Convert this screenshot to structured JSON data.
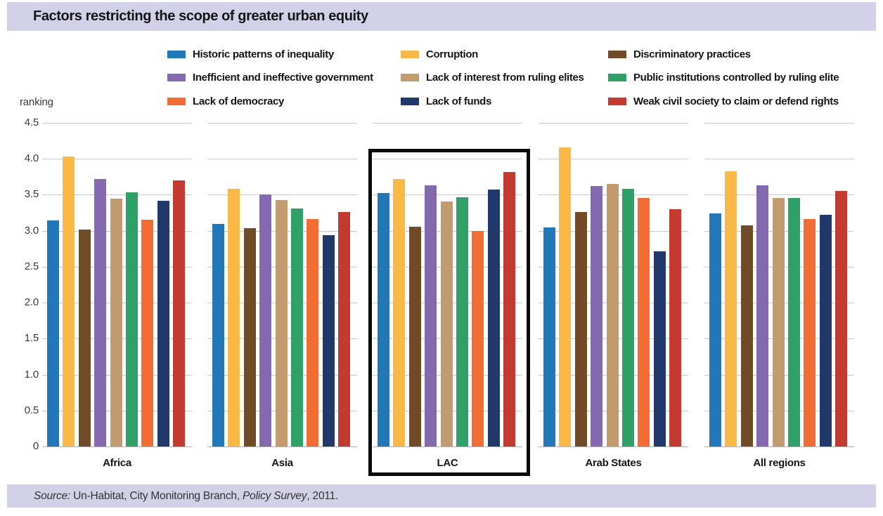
{
  "header": {
    "title": "Factors restricting the scope of greater urban equity"
  },
  "source": {
    "prefix_italic": "Source:",
    "middle": " Un-Habitat, City Monitoring Branch, ",
    "survey_italic": "Policy Survey",
    "suffix": ", 2011."
  },
  "chart_data": {
    "type": "bar",
    "title": "Factors restricting the scope of greater urban equity",
    "xlabel": "",
    "ylabel": "ranking",
    "ylim": [
      0,
      4.5
    ],
    "ytick_labels": [
      "4.5",
      "4.0",
      "3.5",
      "3.0",
      "2.5",
      "2.0",
      "1.5",
      "1.0",
      "0.5",
      "0"
    ],
    "grid": true,
    "legend_position": "top",
    "legend_columns": 3,
    "categories": [
      "Africa",
      "Asia",
      "LAC",
      "Arab States",
      "All regions"
    ],
    "highlighted_category": "LAC",
    "series": [
      {
        "name": "Historic patterns of inequality",
        "color": "#2277b8",
        "values": [
          3.14,
          3.09,
          3.52,
          3.05,
          3.24
        ]
      },
      {
        "name": "Corruption",
        "color": "#fab846",
        "values": [
          4.03,
          3.58,
          3.72,
          4.16,
          3.83
        ]
      },
      {
        "name": "Discriminatory practices",
        "color": "#6f4b28",
        "values": [
          3.02,
          3.04,
          3.06,
          3.26,
          3.07
        ]
      },
      {
        "name": "Inefficient and ineffective government",
        "color": "#8569ae",
        "values": [
          3.72,
          3.5,
          3.63,
          3.62,
          3.63
        ]
      },
      {
        "name": "Lack of interest from ruling elites",
        "color": "#c29c6f",
        "values": [
          3.45,
          3.43,
          3.41,
          3.65,
          3.46
        ]
      },
      {
        "name": "Public institutions controlled by ruling elite",
        "color": "#2fa066",
        "values": [
          3.53,
          3.31,
          3.47,
          3.58,
          3.46
        ]
      },
      {
        "name": "Lack of democracy",
        "color": "#f26d34",
        "values": [
          3.15,
          3.16,
          3.0,
          3.46,
          3.16
        ]
      },
      {
        "name": "Lack of funds",
        "color": "#21386b",
        "values": [
          3.42,
          2.94,
          3.57,
          2.71,
          3.22
        ]
      },
      {
        "name": "Weak civil society to claim or defend rights",
        "color": "#c23a30",
        "values": [
          3.7,
          3.26,
          3.82,
          3.3,
          3.55
        ]
      }
    ],
    "source": "Source: Un-Habitat, City Monitoring Branch, Policy Survey, 2011."
  }
}
